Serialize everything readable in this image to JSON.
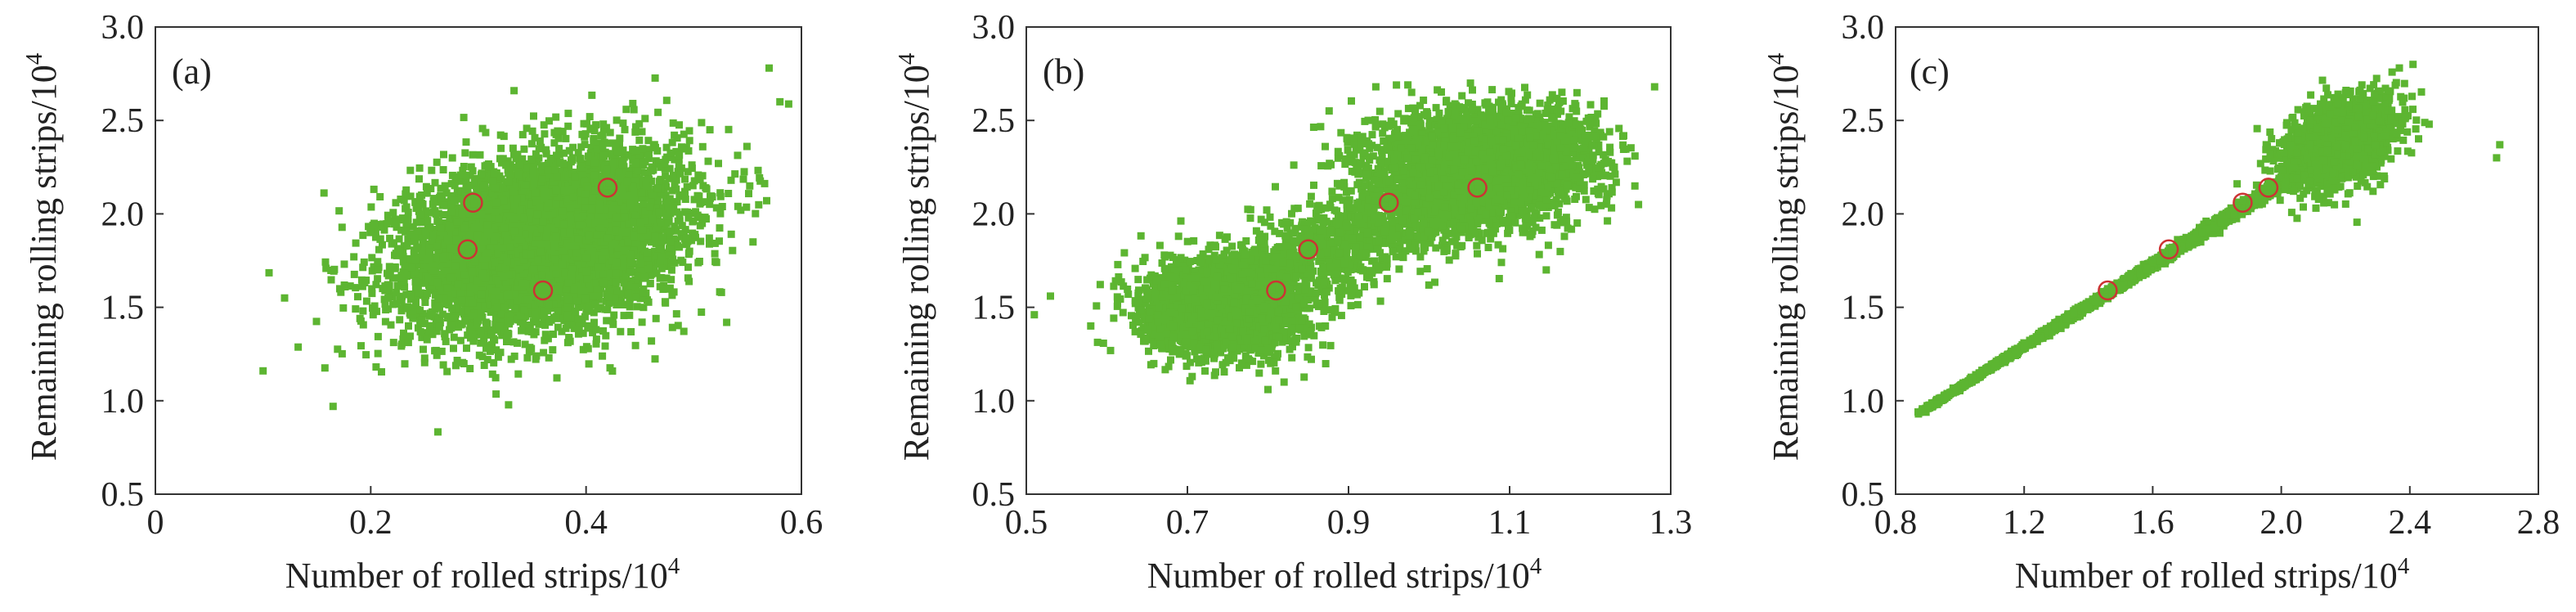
{
  "chart_data": [
    {
      "type": "scatter",
      "panel_label": "(a)",
      "xlabel": "Number of rolled strips/10",
      "xlabel_sup": "4",
      "ylabel": "Remaining rolling strips/10",
      "ylabel_sup": "4",
      "xlim": [
        0,
        0.6
      ],
      "ylim": [
        0.5,
        3.0
      ],
      "xticks": [
        0,
        0.2,
        0.4,
        0.6
      ],
      "xtick_labels": [
        "0",
        "0.2",
        "0.4",
        "0.6"
      ],
      "yticks": [
        0.5,
        1.0,
        1.5,
        2.0,
        2.5,
        3.0
      ],
      "ytick_labels": [
        "0.5",
        "1.0",
        "1.5",
        "2.0",
        "2.5",
        "3.0"
      ],
      "grid": false,
      "series": [
        {
          "color": "#5cb531",
          "marker": "square",
          "distribution": {
            "kind": "bivariate-normal-cloud",
            "count": 6500,
            "center": [
              0.36,
              1.86
            ],
            "x_std": 0.063,
            "y_std": 0.23,
            "correlation": 0.3
          },
          "outliers": [
            [
              0.1,
              1.16
            ],
            [
              0.165,
              0.97
            ],
            [
              0.555,
              1.85
            ],
            [
              0.57,
              2.78
            ],
            [
              0.58,
              2.6
            ],
            [
              0.515,
              2.45
            ],
            [
              0.19,
              1.44
            ],
            [
              0.12,
              1.55
            ]
          ]
        },
        {
          "color": "#cc3333",
          "marker": "open-circle",
          "points": [
            [
              0.295,
              2.06
            ],
            [
              0.29,
              1.81
            ],
            [
              0.36,
              1.59
            ],
            [
              0.42,
              2.14
            ]
          ]
        }
      ]
    },
    {
      "type": "scatter",
      "panel_label": "(b)",
      "xlabel": "Number of rolled strips/10",
      "xlabel_sup": "4",
      "ylabel": "Remaining rolling strips/10",
      "ylabel_sup": "4",
      "xlim": [
        0.5,
        1.3
      ],
      "ylim": [
        0.5,
        3.0
      ],
      "xticks": [
        0.5,
        0.7,
        0.9,
        1.1,
        1.3
      ],
      "xtick_labels": [
        "0.5",
        "0.7",
        "0.9",
        "1.1",
        "1.3"
      ],
      "yticks": [
        0.5,
        1.0,
        1.5,
        2.0,
        2.5,
        3.0
      ],
      "ytick_labels": [
        "0.5",
        "1.0",
        "1.5",
        "2.0",
        "2.5",
        "3.0"
      ],
      "grid": false,
      "series": [
        {
          "color": "#5cb531",
          "marker": "square",
          "distribution": {
            "kind": "two-cluster-band",
            "count": 7500,
            "clusters": [
              {
                "center": [
                  0.75,
                  1.5
                ],
                "share": 0.45,
                "x_std": 0.05,
                "y_std": 0.12
              },
              {
                "center": [
                  1.06,
                  2.25
                ],
                "share": 0.55,
                "x_std": 0.065,
                "y_std": 0.15
              }
            ],
            "band_from": [
              0.68,
              1.42
            ],
            "band_to": [
              1.18,
              2.42
            ],
            "band_width": 0.12
          },
          "outliers": [
            [
              0.53,
              1.56
            ],
            [
              0.51,
              1.46
            ],
            [
              0.8,
              1.06
            ],
            [
              0.82,
              1.1
            ],
            [
              1.23,
              2.25
            ],
            [
              1.26,
              2.05
            ],
            [
              1.28,
              2.68
            ],
            [
              0.58,
              1.4
            ]
          ]
        },
        {
          "color": "#cc3333",
          "marker": "open-circle",
          "points": [
            [
              0.81,
              1.59
            ],
            [
              0.85,
              1.81
            ],
            [
              0.95,
              2.06
            ],
            [
              1.06,
              2.14
            ]
          ]
        }
      ]
    },
    {
      "type": "scatter",
      "panel_label": "(c)",
      "xlabel": "Number of rolled strips/10",
      "xlabel_sup": "4",
      "ylabel": "Remaining rolling strips/10",
      "ylabel_sup": "4",
      "xlim": [
        0.8,
        2.8
      ],
      "ylim": [
        0.5,
        3.0
      ],
      "xticks": [
        0.8,
        1.2,
        1.6,
        2.0,
        2.4,
        2.8
      ],
      "xtick_labels": [
        "0.8",
        "1.2",
        "1.6",
        "2.0",
        "2.4",
        "2.8"
      ],
      "yticks": [
        0.5,
        1.0,
        1.5,
        2.0,
        2.5,
        3.0
      ],
      "ytick_labels": [
        "0.5",
        "1.0",
        "1.5",
        "2.0",
        "2.5",
        "3.0"
      ],
      "grid": false,
      "series": [
        {
          "color": "#5cb531",
          "marker": "square",
          "distribution": {
            "kind": "linear-band-with-tip-cloud",
            "count": 4500,
            "line_from": [
              0.87,
              0.93
            ],
            "line_to": [
              2.05,
              2.22
            ],
            "line_jitter": 0.012,
            "tip_cloud": {
              "center": [
                2.18,
                2.38
              ],
              "x_std": 0.09,
              "y_std": 0.11,
              "count": 1600
            }
          },
          "outliers": [
            [
              2.67,
              2.3
            ],
            [
              2.68,
              2.37
            ],
            [
              2.46,
              2.48
            ],
            [
              2.41,
              2.8
            ],
            [
              0.87,
              0.94
            ],
            [
              0.93,
              0.98
            ]
          ]
        },
        {
          "color": "#cc3333",
          "marker": "open-circle",
          "points": [
            [
              1.46,
              1.59
            ],
            [
              1.65,
              1.81
            ],
            [
              1.88,
              2.06
            ],
            [
              1.96,
              2.14
            ]
          ]
        }
      ]
    }
  ]
}
